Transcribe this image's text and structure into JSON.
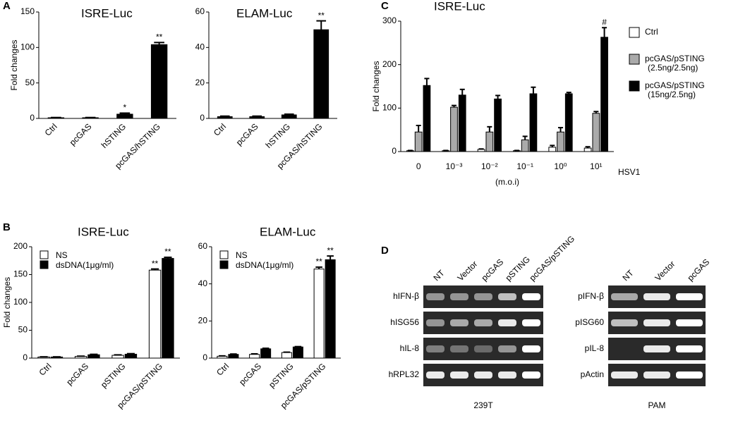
{
  "panel_labels": [
    "A",
    "B",
    "C",
    "D"
  ],
  "chart_data": [
    {
      "type": "bar",
      "title": "ISRE-Luc",
      "ylabel": "Fold changes",
      "categories": [
        "Ctrl",
        "pcGAS",
        "hSTING",
        "pcGAS/hSTING"
      ],
      "values": [
        1,
        1,
        6,
        104
      ],
      "errors": [
        0.3,
        0.3,
        1.5,
        3
      ],
      "significance": [
        null,
        null,
        "*",
        "**"
      ],
      "color": "#000000",
      "ylim": [
        0,
        150
      ],
      "yticks": [
        0,
        50,
        100,
        150
      ]
    },
    {
      "type": "bar",
      "title": "ELAM-Luc",
      "categories": [
        "Ctrl",
        "pcGAS",
        "hSTING",
        "pcGAS/hSTING"
      ],
      "values": [
        1,
        1,
        2,
        50
      ],
      "errors": [
        0.3,
        0.3,
        0.4,
        5
      ],
      "significance": [
        null,
        null,
        null,
        "**"
      ],
      "color": "#000000",
      "ylim": [
        0,
        60
      ],
      "yticks": [
        0,
        20,
        40,
        60
      ]
    },
    {
      "type": "bar",
      "title": "ISRE-Luc",
      "ylabel": "Fold changes",
      "categories": [
        "Ctrl",
        "pcGAS",
        "pSTING",
        "pcGAS/pSTING"
      ],
      "series": [
        {
          "name": "NS",
          "color": "#ffffff",
          "values": [
            2,
            3,
            5,
            158
          ],
          "errors": [
            0.3,
            0.5,
            0.8,
            2
          ],
          "significance": [
            null,
            null,
            null,
            "**"
          ]
        },
        {
          "name": "dsDNA(1μg/ml)",
          "color": "#000000",
          "values": [
            2,
            6,
            7,
            179
          ],
          "errors": [
            0.3,
            0.8,
            1,
            2
          ],
          "significance": [
            null,
            null,
            null,
            "**"
          ]
        }
      ],
      "ylim": [
        0,
        200
      ],
      "yticks": [
        0,
        50,
        100,
        150,
        200
      ],
      "legend": "upper left"
    },
    {
      "type": "bar",
      "title": "ELAM-Luc",
      "categories": [
        "Ctrl",
        "pcGAS",
        "pSTING",
        "pcGAS/pSTING"
      ],
      "series": [
        {
          "name": "NS",
          "color": "#ffffff",
          "values": [
            1,
            2,
            3,
            48
          ],
          "errors": [
            0.2,
            0.3,
            0.2,
            1
          ],
          "significance": [
            null,
            null,
            null,
            "**"
          ]
        },
        {
          "name": "dsDNA(1μg/ml)",
          "color": "#000000",
          "values": [
            2,
            5,
            6,
            53
          ],
          "errors": [
            0.2,
            0.3,
            0.2,
            2
          ],
          "significance": [
            null,
            null,
            null,
            "**"
          ]
        }
      ],
      "ylim": [
        0,
        60
      ],
      "yticks": [
        0,
        20,
        40,
        60
      ],
      "legend": "upper left"
    },
    {
      "type": "bar",
      "title": "ISRE-Luc",
      "ylabel": "Fold changes",
      "xlabel": "(m.o.i)",
      "x_note": "HSV1",
      "categories": [
        "0",
        "10⁻³",
        "10⁻²",
        "10⁻¹",
        "10⁰",
        "10¹"
      ],
      "series": [
        {
          "name": "Ctrl",
          "color": "#ffffff",
          "values": [
            2,
            2,
            5,
            2,
            10,
            8
          ],
          "errors": [
            0.5,
            0.5,
            1,
            0.5,
            4,
            3
          ],
          "significance": [
            null,
            null,
            null,
            null,
            null,
            null
          ]
        },
        {
          "name": "pcGAS/pSTING",
          "sublabel": "(2.5ng/2.5ng)",
          "color": "#aaaaaa",
          "values": [
            45,
            102,
            45,
            27,
            45,
            88
          ],
          "errors": [
            15,
            4,
            12,
            8,
            10,
            4
          ],
          "significance": [
            null,
            null,
            null,
            null,
            null,
            null
          ]
        },
        {
          "name": "pcGAS/pSTING",
          "sublabel": "(15ng/2.5ng)",
          "color": "#000000",
          "values": [
            152,
            130,
            121,
            133,
            133,
            263
          ],
          "errors": [
            16,
            13,
            8,
            15,
            3,
            22
          ],
          "significance": [
            null,
            null,
            null,
            null,
            null,
            "#"
          ]
        }
      ],
      "ylim": [
        0,
        300
      ],
      "yticks": [
        0,
        100,
        200,
        300
      ],
      "legend": "right"
    }
  ],
  "gels": [
    {
      "columns": [
        "NT",
        "Vector",
        "pcGAS",
        "pSTING",
        "pcGAS/pSTING"
      ],
      "rows": [
        "hIFN-β",
        "hISG56",
        "hIL-8",
        "hRPL32"
      ],
      "caption": "239T"
    },
    {
      "columns": [
        "NT",
        "Vector",
        "pcGAS"
      ],
      "rows": [
        "pIFN-β",
        "pISG60",
        "pIL-8",
        "pActin"
      ],
      "caption": "PAM"
    }
  ]
}
